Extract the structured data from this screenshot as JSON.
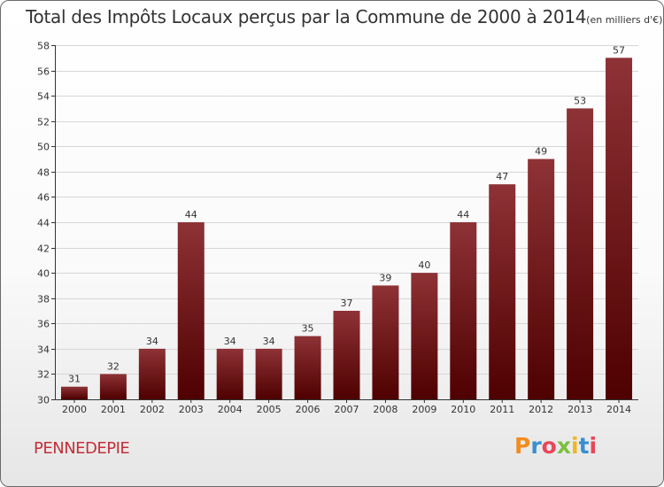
{
  "header": {
    "title": "Total des Impôts Locaux perçus par la Commune de 2000 à 2014",
    "unit": "(en milliers d'€)"
  },
  "commune_name": "PENNEDEPIE",
  "logo": {
    "text": "Proxiti",
    "letter_colors": [
      "#f28c1e",
      "#3a8fd0",
      "#e8465a",
      "#7fbf3f",
      "#f2b61e",
      "#3a8fd0",
      "#e8465a"
    ]
  },
  "colors": {
    "bar_top": "#8e3236",
    "bar_bottom": "#4f0000",
    "axis": "#333333",
    "grid": "#d6d6d6",
    "label": "#333333"
  },
  "chart_data": {
    "type": "bar",
    "title": "Total des Impôts Locaux perçus par la Commune de 2000 à 2014",
    "xlabel": "",
    "ylabel": "(en milliers d'€)",
    "categories": [
      "2000",
      "2001",
      "2002",
      "2003",
      "2004",
      "2005",
      "2006",
      "2007",
      "2008",
      "2009",
      "2010",
      "2011",
      "2012",
      "2013",
      "2014"
    ],
    "values": [
      31,
      32,
      34,
      44,
      34,
      34,
      35,
      37,
      39,
      40,
      44,
      47,
      49,
      53,
      57
    ],
    "ylim": [
      30,
      58
    ],
    "yticks": [
      30,
      32,
      34,
      36,
      38,
      40,
      42,
      44,
      46,
      48,
      50,
      52,
      54,
      56,
      58
    ],
    "grid": true,
    "data_labels": true
  }
}
